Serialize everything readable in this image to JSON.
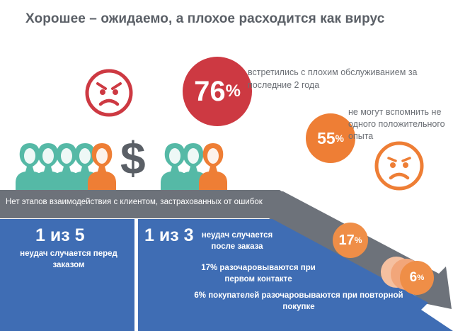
{
  "title": "Хорошее – ожидаемо, а плохое расходится как вирус",
  "stat_76": {
    "number": "76",
    "unit": "%",
    "text": "встретились с плохим обслуживанием за последние 2 года"
  },
  "stat_55": {
    "number": "55",
    "unit": "%",
    "text": "не могут вспомнить не одного положительного опыта"
  },
  "dollar": "$",
  "banner": "Нет этапов взаимодействия с клиентом, застрахованных от ошибок",
  "left_panel": {
    "big": "1 из 5",
    "text": "неудач случается перед заказом"
  },
  "right_panel": {
    "big": "1 из 3",
    "text": "неудач случается после заказа",
    "line2": "17% разочаровываются при первом контакте",
    "line3": "6%  покупателей разочаровываются при повторной покупке"
  },
  "badge_17": {
    "number": "17",
    "unit": "%"
  },
  "badge_6": {
    "number": "6",
    "unit": "%"
  },
  "colors": {
    "red": "#cd3942",
    "orange": "#ee7e35",
    "teal": "#55b9a6",
    "blue": "#3f6db4",
    "grey": "#6d727a"
  }
}
